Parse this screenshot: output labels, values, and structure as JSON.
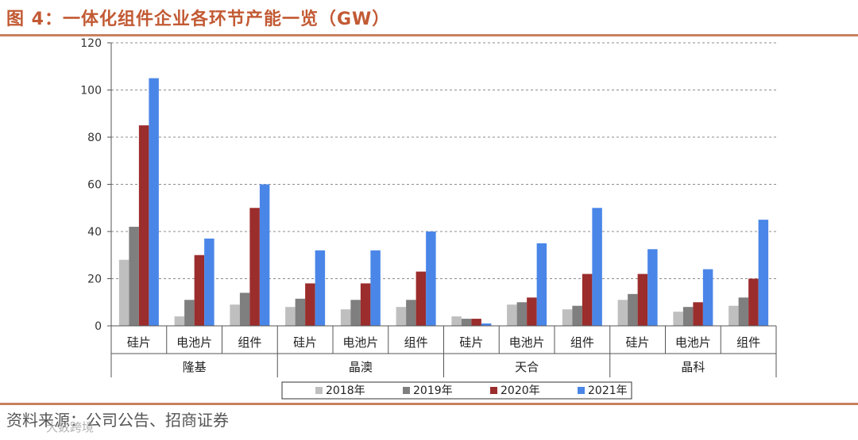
{
  "header": {
    "title": "图 4：一体化组件企业各环节产能一览（GW）"
  },
  "footer": {
    "source": "资料来源：公司公告、招商证券",
    "watermark": "大数跨境"
  },
  "colors": {
    "accent": "#c25a34",
    "s2018": "#bfbfbf",
    "s2019": "#7f7f7f",
    "s2020": "#9b2d2d",
    "s2021": "#4a86e8"
  },
  "chart_data": {
    "type": "bar",
    "title": "一体化组件企业各环节产能一览（GW）",
    "ylim": [
      0,
      120
    ],
    "yticks": [
      0,
      20,
      40,
      60,
      80,
      100,
      120
    ],
    "grid": true,
    "legend_position": "bottom",
    "groups": [
      {
        "name": "隆基",
        "categories": [
          "硅片",
          "电池片",
          "组件"
        ]
      },
      {
        "name": "晶澳",
        "categories": [
          "硅片",
          "电池片",
          "组件"
        ]
      },
      {
        "name": "天合",
        "categories": [
          "硅片",
          "电池片",
          "组件"
        ]
      },
      {
        "name": "晶科",
        "categories": [
          "硅片",
          "电池片",
          "组件"
        ]
      }
    ],
    "series": [
      {
        "name": "2018年",
        "color": "#bfbfbf",
        "values": [
          28,
          4,
          9,
          8,
          7,
          8,
          4,
          9,
          7,
          11,
          6,
          8.5
        ]
      },
      {
        "name": "2019年",
        "color": "#7f7f7f",
        "values": [
          42,
          11,
          14,
          11.5,
          11,
          11,
          3,
          10,
          8.5,
          13.5,
          8,
          12
        ]
      },
      {
        "name": "2020年",
        "color": "#9b2d2d",
        "values": [
          85,
          30,
          50,
          18,
          18,
          23,
          3,
          12,
          22,
          22,
          10,
          20
        ]
      },
      {
        "name": "2021年",
        "color": "#4a86e8",
        "values": [
          105,
          37,
          60,
          32,
          32,
          40,
          1,
          35,
          50,
          32.5,
          24,
          45
        ]
      }
    ]
  }
}
